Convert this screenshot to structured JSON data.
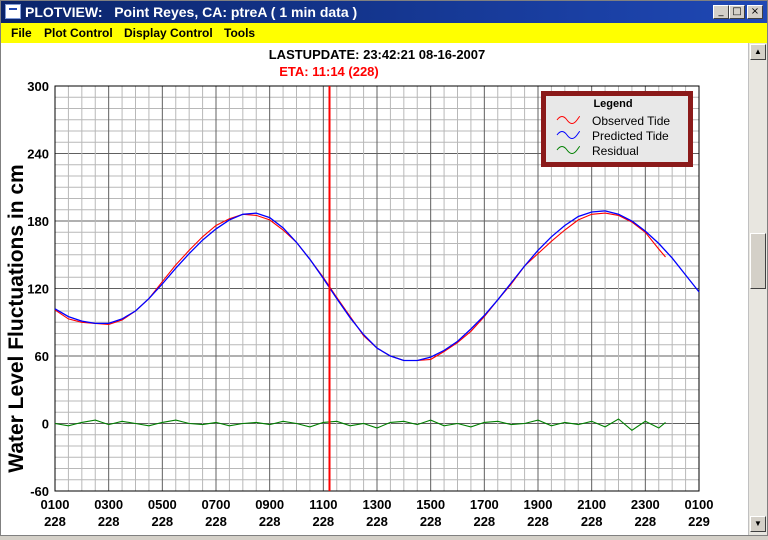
{
  "window": {
    "title": "PLOTVIEW:   Point Reyes, CA: ptreA ( 1 min data )",
    "controls": {
      "minimize": "_",
      "maximize": "□",
      "close": "×"
    }
  },
  "menu": [
    "File",
    "Plot Control",
    "Display Control",
    "Tools"
  ],
  "header": {
    "last_update": "LASTUPDATE: 23:42:21   08-16-2007",
    "eta": "ETA: 11:14 (228)"
  },
  "colors": {
    "observed": "#ff0000",
    "predicted": "#0000ff",
    "residual": "#008000",
    "eta_line": "#ff0000",
    "legend_border": "#8b1a1a"
  },
  "chart_data": {
    "type": "line",
    "title": "",
    "ylabel": "Water Level Fluctuations in cm",
    "xlabel": "",
    "ylim": [
      -60,
      300
    ],
    "xlim": [
      1,
      25
    ],
    "yticks": [
      -60,
      0,
      60,
      120,
      180,
      240,
      300
    ],
    "xticks": [
      {
        "x": 1,
        "time": "0100",
        "day": "228"
      },
      {
        "x": 3,
        "time": "0300",
        "day": "228"
      },
      {
        "x": 5,
        "time": "0500",
        "day": "228"
      },
      {
        "x": 7,
        "time": "0700",
        "day": "228"
      },
      {
        "x": 9,
        "time": "0900",
        "day": "228"
      },
      {
        "x": 11,
        "time": "1100",
        "day": "228"
      },
      {
        "x": 13,
        "time": "1300",
        "day": "228"
      },
      {
        "x": 15,
        "time": "1500",
        "day": "228"
      },
      {
        "x": 17,
        "time": "1700",
        "day": "228"
      },
      {
        "x": 19,
        "time": "1900",
        "day": "228"
      },
      {
        "x": 21,
        "time": "2100",
        "day": "228"
      },
      {
        "x": 23,
        "time": "2300",
        "day": "228"
      },
      {
        "x": 25,
        "time": "0100",
        "day": "229"
      }
    ],
    "grid": true,
    "legend": {
      "title": "Legend",
      "position": "top-right"
    },
    "eta_time": 11.23,
    "series": [
      {
        "name": "Observed Tide",
        "x": [
          1,
          1.5,
          2,
          2.5,
          3,
          3.5,
          4,
          4.5,
          5,
          5.5,
          6,
          6.5,
          7,
          7.5,
          8,
          8.5,
          9,
          9.5,
          10,
          10.5,
          11,
          11.5,
          12,
          12.5,
          13,
          13.5,
          14,
          14.5,
          15,
          15.5,
          16,
          16.5,
          17,
          17.5,
          18,
          18.5,
          19,
          19.5,
          20,
          20.5,
          21,
          21.5,
          22,
          22.5,
          23,
          23.5,
          23.75
        ],
        "values": [
          101,
          93,
          90,
          89,
          88,
          92,
          100,
          111,
          126,
          141,
          154,
          166,
          176,
          182,
          186,
          185,
          181,
          172,
          161,
          146,
          130,
          112,
          95,
          78,
          67,
          60,
          56,
          56,
          57,
          64,
          72,
          82,
          95,
          110,
          124,
          140,
          151,
          162,
          172,
          181,
          186,
          187,
          185,
          179,
          170,
          155,
          148
        ]
      },
      {
        "name": "Predicted Tide",
        "x": [
          1,
          1.5,
          2,
          2.5,
          3,
          3.5,
          4,
          4.5,
          5,
          5.5,
          6,
          6.5,
          7,
          7.5,
          8,
          8.5,
          9,
          9.5,
          10,
          10.5,
          11,
          11.5,
          12,
          12.5,
          13,
          13.5,
          14,
          14.5,
          15,
          15.5,
          16,
          16.5,
          17,
          17.5,
          18,
          18.5,
          19,
          19.5,
          20,
          20.5,
          21,
          21.5,
          22,
          22.5,
          23,
          23.5,
          24,
          24.5,
          25
        ],
        "values": [
          102,
          95,
          91,
          89,
          89,
          93,
          100,
          111,
          124,
          138,
          151,
          163,
          173,
          181,
          186,
          187,
          183,
          174,
          161,
          146,
          129,
          111,
          94,
          79,
          67,
          60,
          56,
          56,
          59,
          65,
          73,
          84,
          96,
          110,
          125,
          140,
          154,
          166,
          176,
          184,
          188,
          189,
          186,
          180,
          171,
          160,
          147,
          132,
          117
        ]
      },
      {
        "name": "Residual",
        "x": [
          1,
          1.5,
          2,
          2.5,
          3,
          3.5,
          4,
          4.5,
          5,
          5.5,
          6,
          6.5,
          7,
          7.5,
          8,
          8.5,
          9,
          9.5,
          10,
          10.5,
          11,
          11.5,
          12,
          12.5,
          13,
          13.5,
          14,
          14.5,
          15,
          15.5,
          16,
          16.5,
          17,
          17.5,
          18,
          18.5,
          19,
          19.5,
          20,
          20.5,
          21,
          21.5,
          22,
          22.5,
          23,
          23.5,
          23.75
        ],
        "values": [
          0,
          -2,
          1,
          3,
          -1,
          2,
          0,
          -2,
          1,
          3,
          0,
          -1,
          1,
          -2,
          0,
          1,
          -1,
          2,
          0,
          -3,
          1,
          2,
          -2,
          0,
          -4,
          1,
          2,
          -1,
          3,
          -2,
          0,
          -3,
          1,
          2,
          -1,
          0,
          3,
          -2,
          1,
          -1,
          2,
          -3,
          4,
          -6,
          2,
          -4,
          1
        ]
      }
    ]
  }
}
